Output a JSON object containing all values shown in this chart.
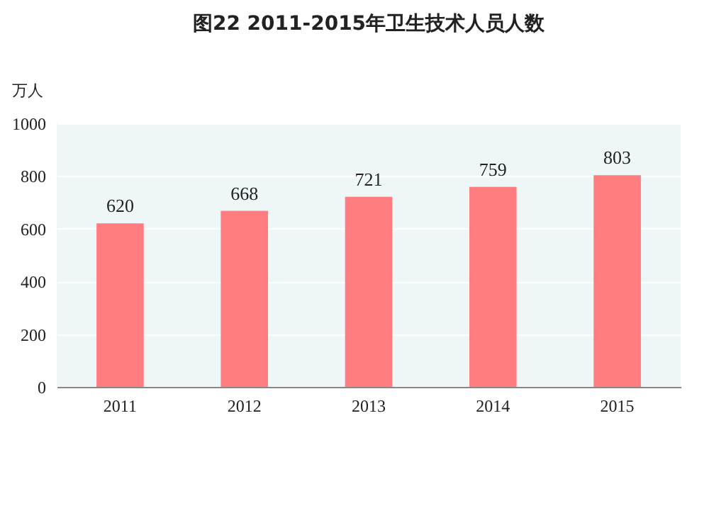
{
  "chart_data": {
    "type": "bar",
    "title": "图22  2011-2015年卫生技术人员人数",
    "ylabel": "万人",
    "categories": [
      "2011",
      "2012",
      "2013",
      "2014",
      "2015"
    ],
    "values": [
      620,
      668,
      721,
      759,
      803
    ],
    "color": "#ff7c80",
    "ylim": [
      0,
      1000
    ],
    "yticks": [
      0,
      200,
      400,
      600,
      800,
      1000
    ],
    "grid": "y",
    "data_labels": true
  }
}
